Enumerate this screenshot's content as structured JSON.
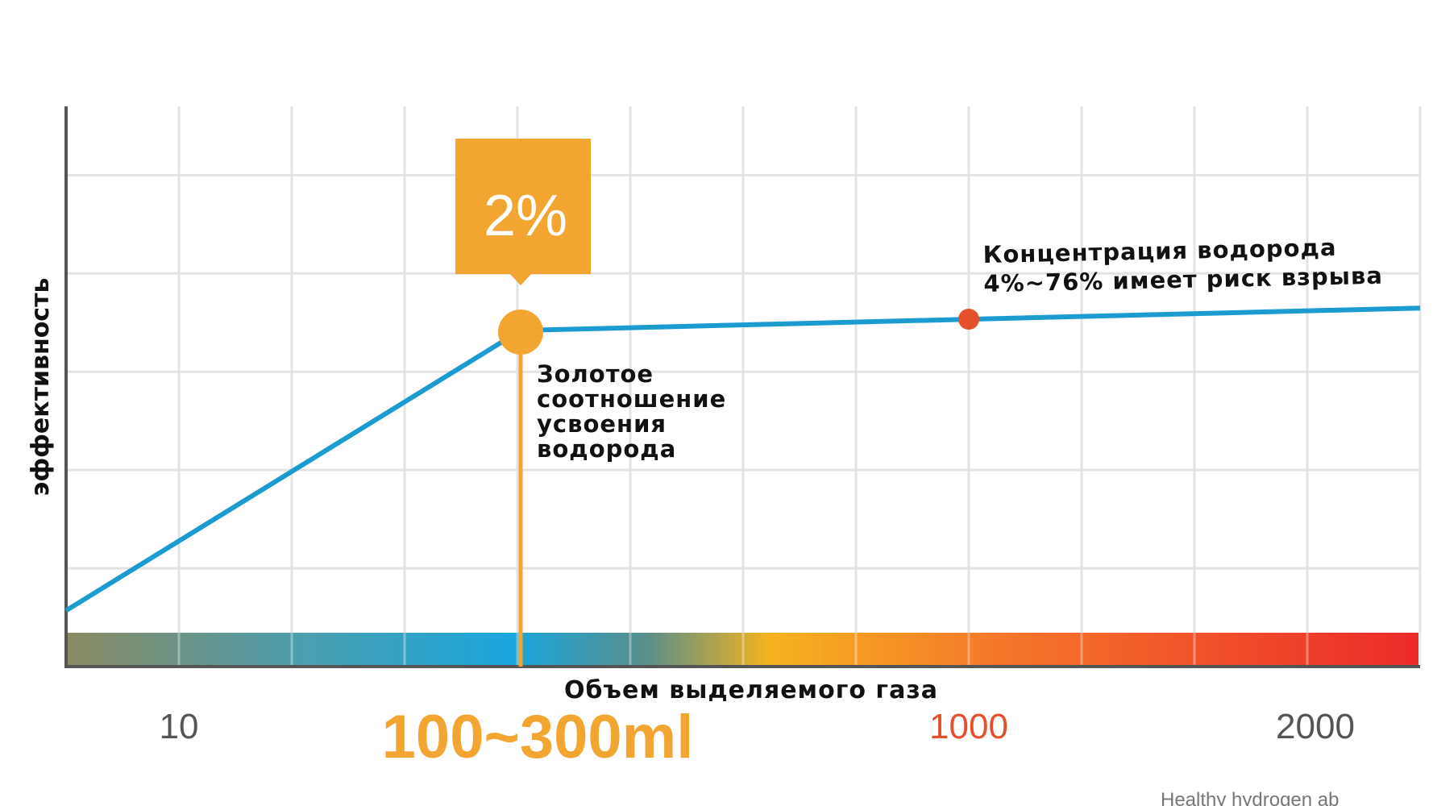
{
  "chart_data": {
    "type": "line",
    "ylabel": "эффективность",
    "xlabel": "Объем выделяемого газа",
    "x_tick_labels": [
      "10",
      "100~300ml",
      "1000",
      "2000"
    ],
    "series": [
      {
        "values": [
          0.1,
          0.6,
          0.62,
          0.64
        ]
      }
    ],
    "callout": "2%",
    "annotations": {
      "golden_ratio": [
        "Золотое",
        "соотношение",
        "усвоения",
        "водорода"
      ],
      "explosion_risk": [
        "Концентрация водорода",
        "4%~76% имеет риск взрыва"
      ]
    },
    "ylim": [
      0,
      1
    ],
    "grid": true
  },
  "footer": "Healthy hydrogen ab",
  "colors": {
    "line": "#1b9bd0",
    "accent": "#f2a531",
    "risk": "#e5502c",
    "grid": "#e3e3e3",
    "axis": "#555555"
  }
}
